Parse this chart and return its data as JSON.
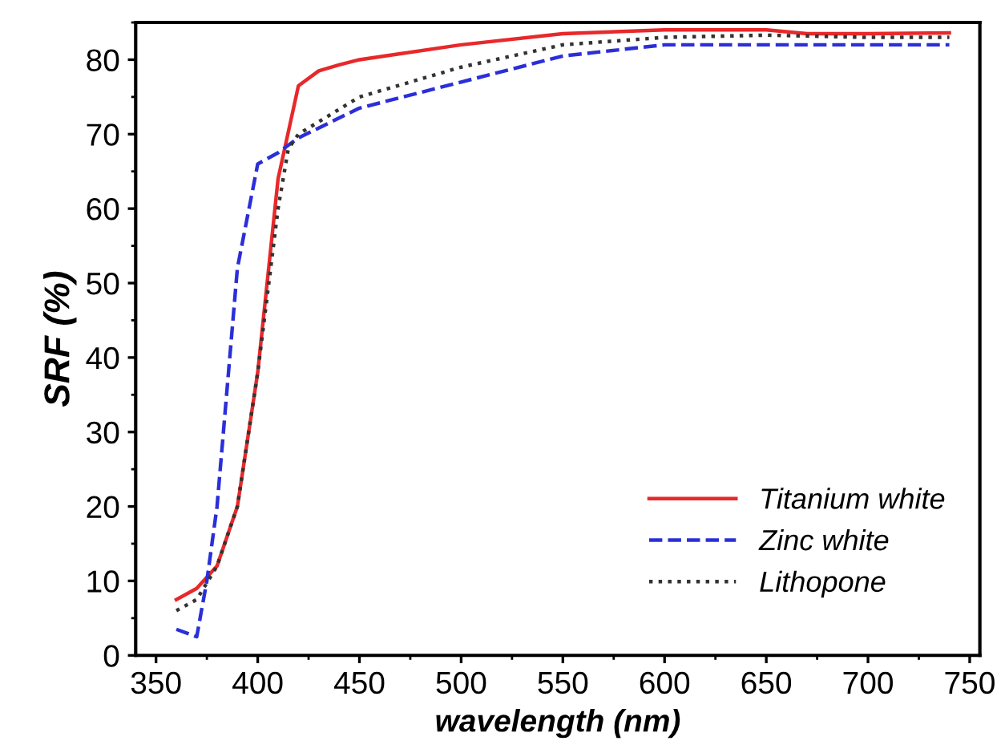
{
  "chart_data": {
    "type": "line",
    "xlabel": "wavelength (nm)",
    "ylabel": "SRF (%)",
    "xlim": [
      340,
      755
    ],
    "xticks": [
      350,
      400,
      450,
      500,
      550,
      600,
      650,
      700,
      750
    ],
    "ylim": [
      0,
      85
    ],
    "yticks": [
      0,
      10,
      20,
      30,
      40,
      50,
      60,
      70,
      80
    ],
    "grid": false,
    "legend": "bottom right",
    "marker": "none",
    "series": [
      {
        "name": "Titanium white",
        "color": "#e8282a",
        "line_style": "solid",
        "x": [
          360,
          370,
          380,
          390,
          400,
          410,
          420,
          430,
          440,
          450,
          470,
          500,
          550,
          600,
          650,
          670,
          700,
          740
        ],
        "values": [
          7.5,
          9,
          12,
          20,
          38,
          64,
          76.5,
          78.5,
          79.3,
          80,
          80.8,
          82,
          83.5,
          84,
          84,
          83.5,
          83.5,
          83.6
        ]
      },
      {
        "name": "Zinc white",
        "color": "#2b2fd8",
        "line_style": "dashed",
        "x": [
          360,
          370,
          375,
          380,
          390,
          400,
          410,
          420,
          450,
          500,
          550,
          600,
          650,
          700,
          740
        ],
        "values": [
          3.5,
          2.5,
          10,
          20,
          52,
          66,
          67.5,
          69.5,
          73.5,
          77,
          80.5,
          82,
          82,
          82,
          82
        ]
      },
      {
        "name": "Lithopone",
        "color": "#333333",
        "line_style": "dotted",
        "x": [
          360,
          370,
          380,
          390,
          400,
          410,
          415,
          420,
          450,
          500,
          550,
          600,
          650,
          700,
          740
        ],
        "values": [
          6,
          7.5,
          12,
          20,
          38,
          60,
          68,
          70,
          75,
          79,
          82,
          83,
          83.3,
          83,
          83
        ]
      }
    ]
  }
}
